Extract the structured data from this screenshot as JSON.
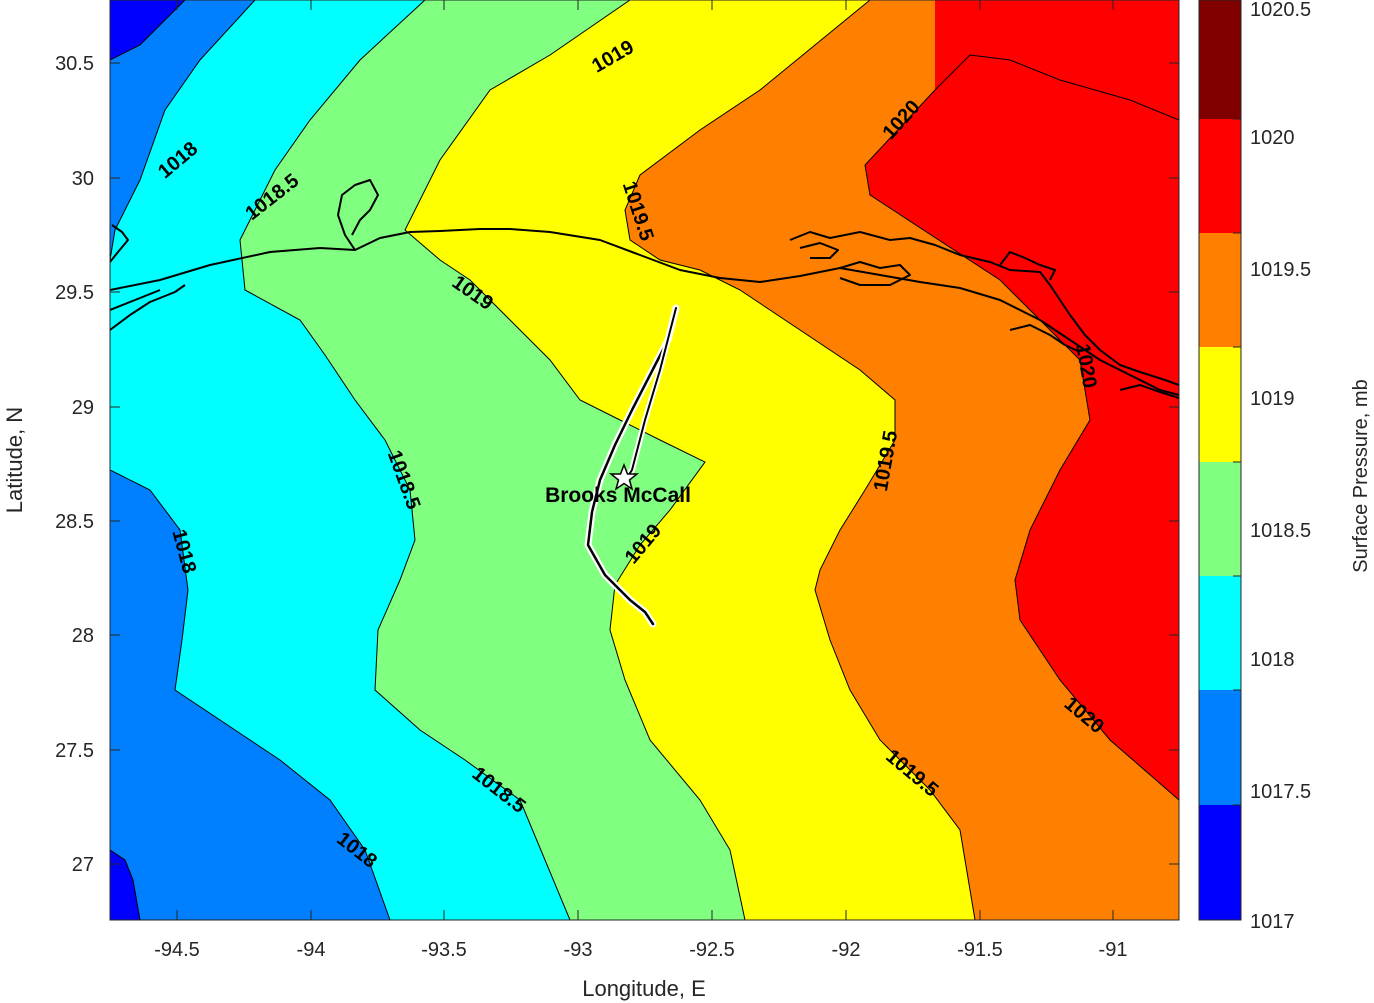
{
  "map": {
    "xlabel": "Longitude, E",
    "ylabel": "Latitude, N",
    "xlim": [
      -94.75,
      -90.75
    ],
    "ylim": [
      26.75,
      30.75
    ],
    "xticks": [
      "-94.5",
      "-94",
      "-93.5",
      "-93",
      "-92.5",
      "-92",
      "-91.5",
      "-91"
    ],
    "yticks": [
      "27",
      "27.5",
      "28",
      "28.5",
      "29",
      "29.5",
      "30",
      "30.5"
    ],
    "grid": false
  },
  "contours": {
    "field": "Surface Pressure",
    "interval": 0.5,
    "labels": [
      "1018",
      "1018.5",
      "1019",
      "1019.5",
      "1020",
      "1018",
      "1018.5",
      "1019",
      "1019.5",
      "1020",
      "1018",
      "1018.5",
      "1019",
      "1019.5",
      "1020",
      "1018.5",
      "1019",
      "1019.5"
    ]
  },
  "station": {
    "name": "Brooks McCall",
    "lon": -92.82,
    "lat": 28.7,
    "marker": "star-icon"
  },
  "colorbar": {
    "label": "Surface Pressure, mb",
    "ticks": [
      "1017",
      "1017.5",
      "1018",
      "1018.5",
      "1019",
      "1019.5",
      "1020",
      "1020.5"
    ],
    "colors": [
      "#0000ff",
      "#0080ff",
      "#00ffff",
      "#80ff80",
      "#ffff00",
      "#ff8000",
      "#ff0000",
      "#800000"
    ]
  }
}
